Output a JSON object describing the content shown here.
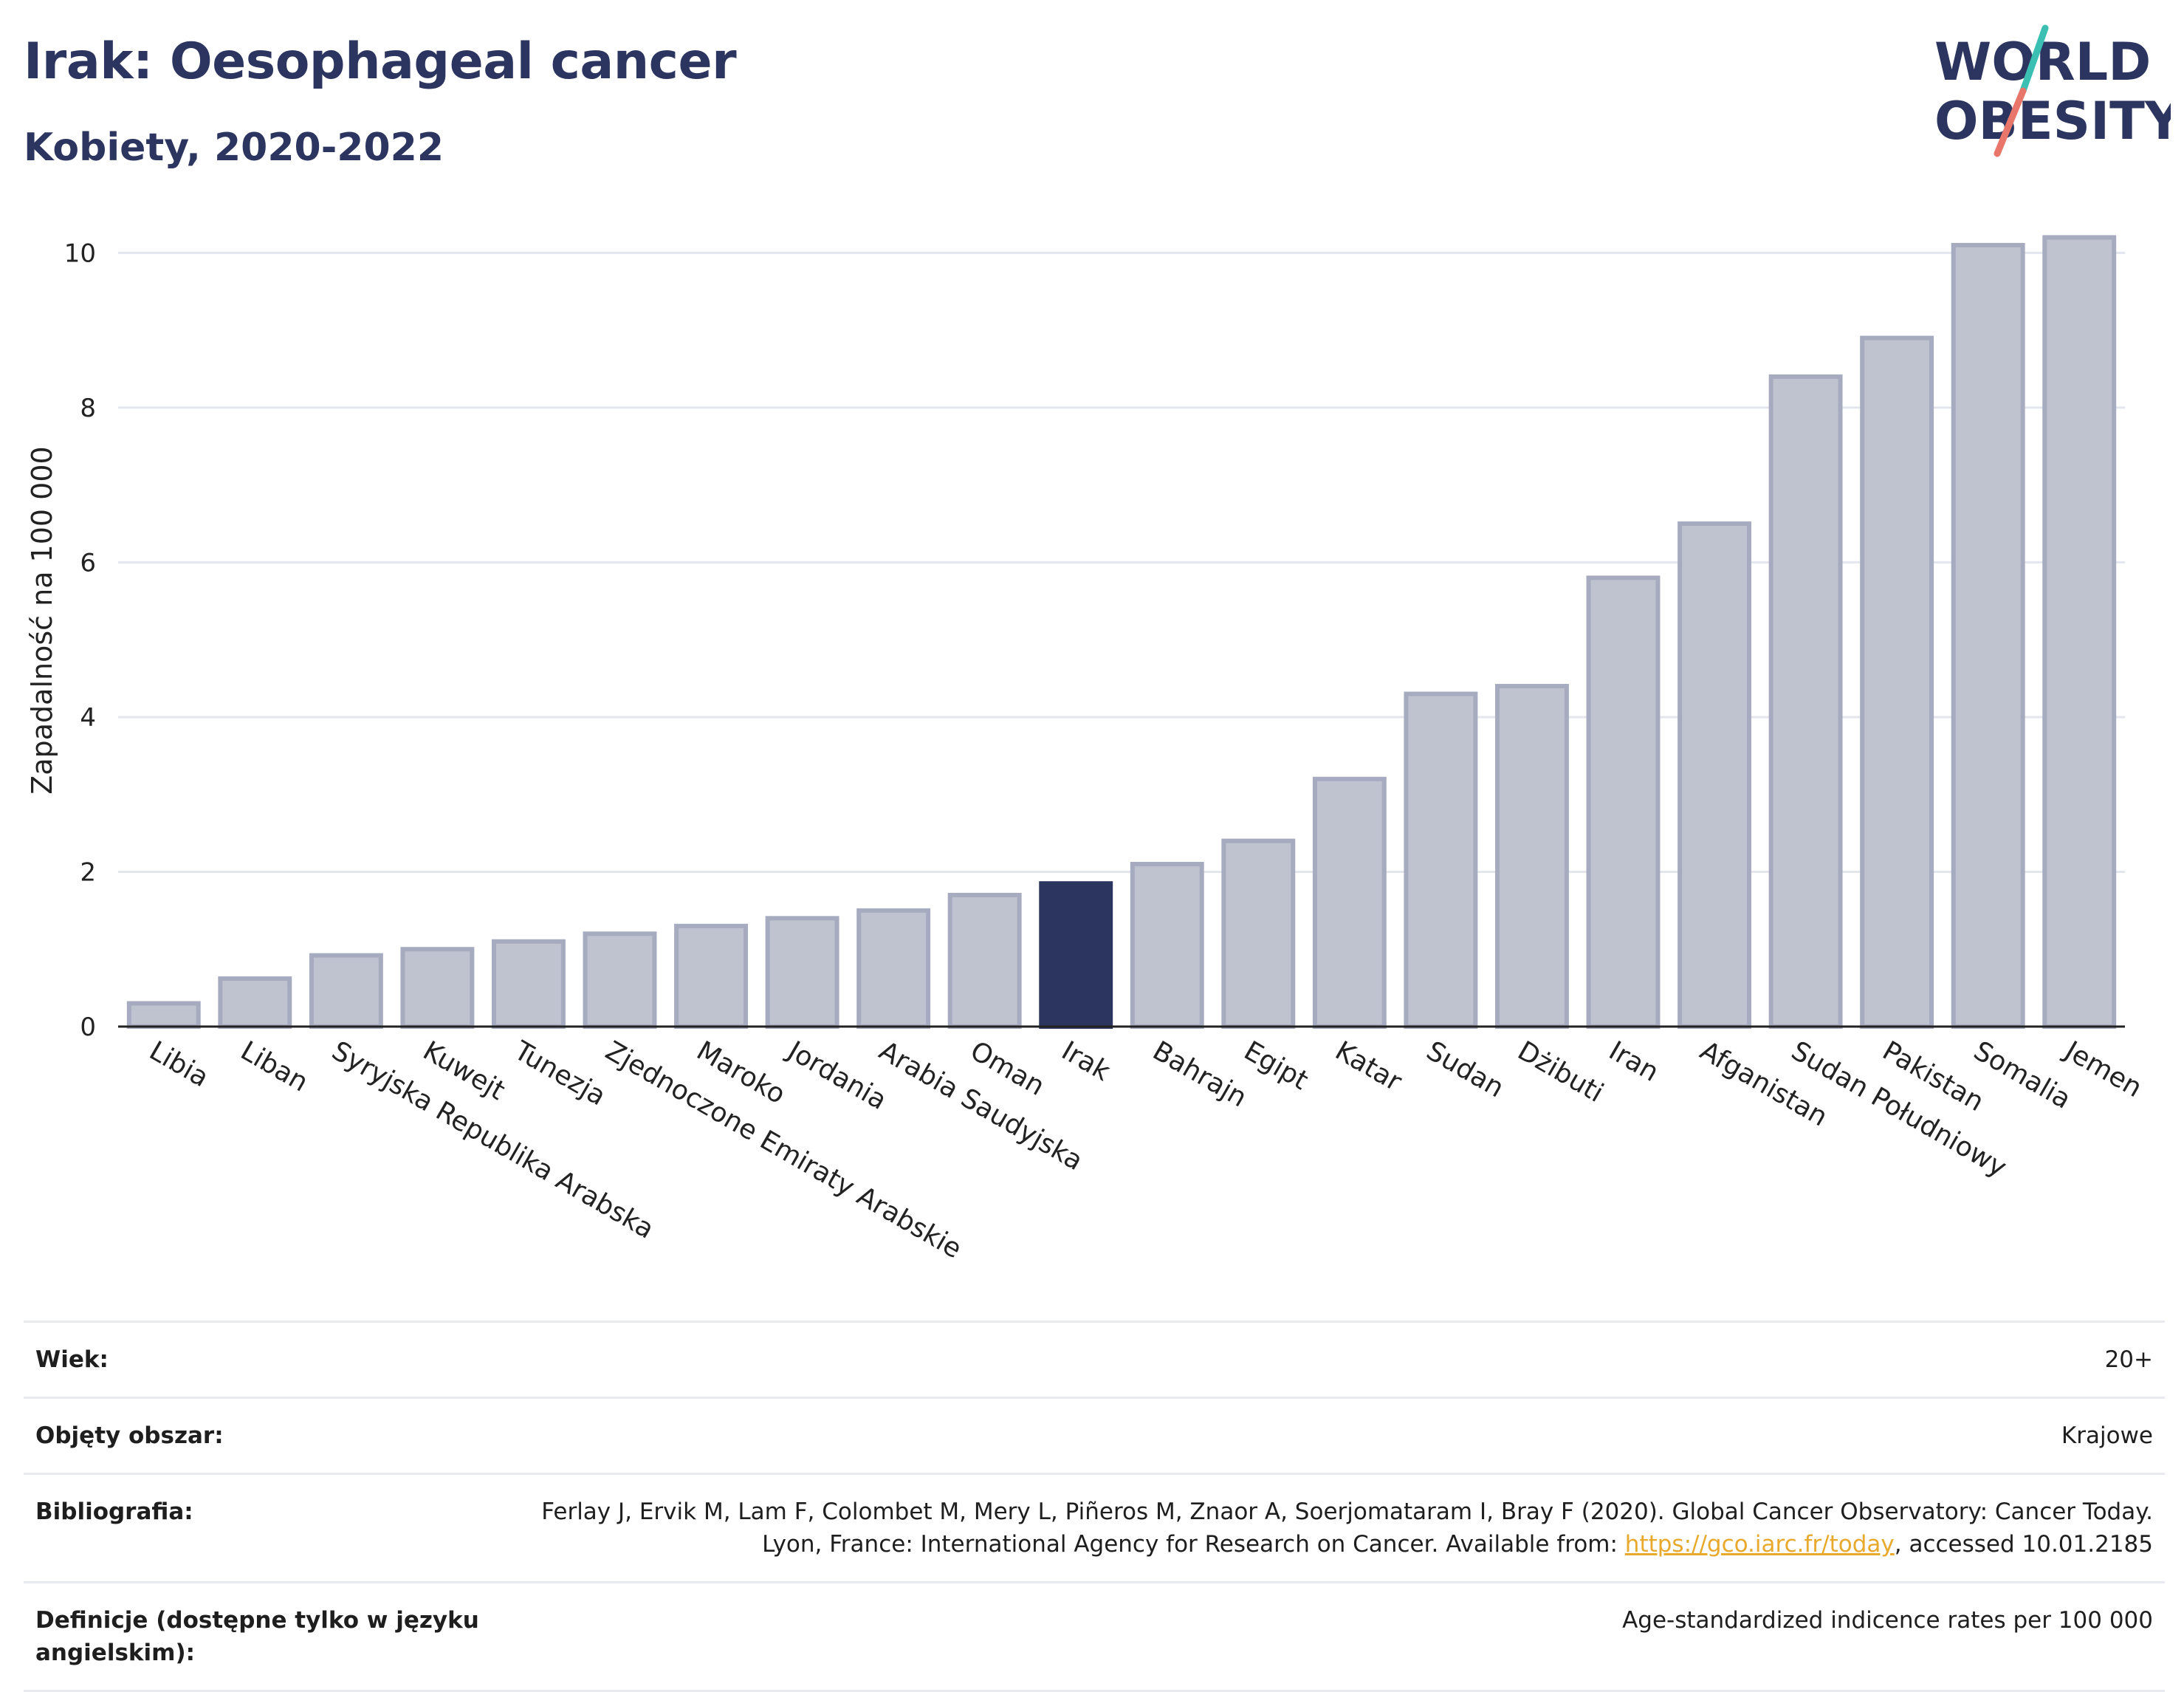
{
  "header": {
    "title": "Irak: Oesophageal cancer",
    "subtitle": "Kobiety, 2020-2022"
  },
  "logo": {
    "line1": "WORLD",
    "line2": "OBESITY"
  },
  "colors": {
    "highlight": "#2c355f",
    "bar_fill": "#bfc3cf",
    "bar_stroke": "#a6abbf",
    "grid": "#e4e6ee",
    "logo_text": "#2c355f",
    "logo_slash_top": "#3cbfb3",
    "logo_slash_bottom": "#e8766a"
  },
  "chart_data": {
    "type": "bar",
    "ylabel": "Zapadalność na 100 000",
    "xlabel": "",
    "ylim": [
      0,
      10.5
    ],
    "yticks": [
      0,
      2,
      4,
      6,
      8,
      10
    ],
    "grid": true,
    "highlight": "Irak",
    "categories": [
      "Libia",
      "Liban",
      "Syryjska Republika Arabska",
      "Kuwejt",
      "Tunezja",
      "Zjednoczone Emiraty Arabskie",
      "Maroko",
      "Jordania",
      "Arabia Saudyjska",
      "Oman",
      "Irak",
      "Bahrajn",
      "Egipt",
      "Katar",
      "Sudan",
      "Dżibuti",
      "Iran",
      "Afganistan",
      "Sudan Południowy",
      "Pakistan",
      "Somalia",
      "Jemen"
    ],
    "values": [
      0.3,
      0.62,
      0.92,
      1.0,
      1.1,
      1.2,
      1.3,
      1.4,
      1.5,
      1.7,
      1.85,
      2.1,
      2.4,
      3.2,
      4.3,
      4.4,
      5.8,
      6.5,
      8.4,
      8.9,
      10.1,
      10.2
    ]
  },
  "meta": {
    "rows": [
      {
        "key": "Wiek:",
        "value": "20+"
      },
      {
        "key": "Objęty obszar:",
        "value": "Krajowe"
      },
      {
        "key": "Bibliografia:",
        "value_before": "Ferlay J, Ervik M, Lam F, Colombet M, Mery L, Piñeros M, Znaor A, Soerjomataram I, Bray F (2020). Global Cancer Observatory: Cancer Today. Lyon, France: International Agency for Research on Cancer. Available from: ",
        "link": "https://gco.iarc.fr/today",
        "value_after": ", accessed 10.01.2185"
      },
      {
        "key": "Definicje (dostępne tylko w języku angielskim):",
        "value": "Age-standardized indicence rates per 100 000"
      }
    ]
  }
}
